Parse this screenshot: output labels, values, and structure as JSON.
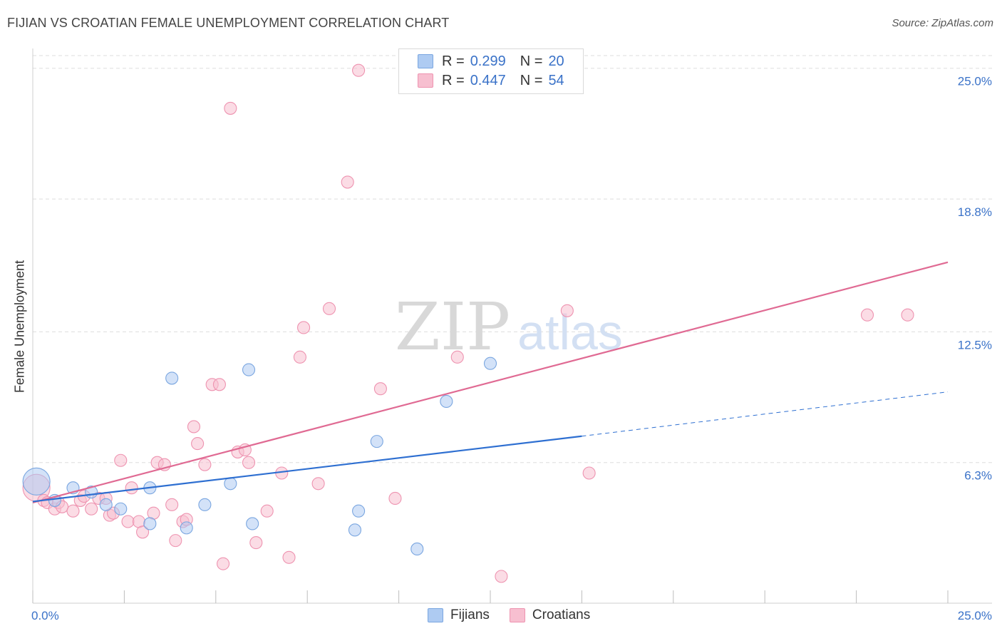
{
  "title": "FIJIAN VS CROATIAN FEMALE UNEMPLOYMENT CORRELATION CHART",
  "source": "Source: ZipAtlas.com",
  "watermark": {
    "zip": "ZIP",
    "atlas": "atlas"
  },
  "legend": {
    "series": [
      {
        "name": "Fijians",
        "r_label": "R = ",
        "r": "0.299",
        "n_label": "N = ",
        "n": "20"
      },
      {
        "name": "Croatians",
        "r_label": "R = ",
        "r": "0.447",
        "n_label": "N = ",
        "n": "54"
      }
    ]
  },
  "colors": {
    "fijians_fill": "#aecbf2",
    "fijians_stroke": "#7aa6e0",
    "fijians_line": "#2e6fd1",
    "croatians_fill": "#f7bfd0",
    "croatians_stroke": "#ee93b0",
    "croatians_line": "#e06a93",
    "tick_label": "#3a72c8"
  },
  "chart_data": {
    "type": "scatter",
    "title": "FIJIAN VS CROATIAN FEMALE UNEMPLOYMENT CORRELATION CHART",
    "xlabel": "",
    "ylabel": "Female Unemployment",
    "xlim": [
      0,
      25
    ],
    "ylim": [
      0,
      25.6
    ],
    "x_tick_labels": [
      {
        "value": 0,
        "label": "0.0%"
      },
      {
        "value": 25,
        "label": "25.0%"
      }
    ],
    "y_ticks": [
      {
        "value": 6.3,
        "label": "6.3%"
      },
      {
        "value": 12.5,
        "label": "12.5%"
      },
      {
        "value": 18.8,
        "label": "18.8%"
      },
      {
        "value": 25.0,
        "label": "25.0%"
      }
    ],
    "series": [
      {
        "name": "Fijians",
        "r": 0.299,
        "n": 20,
        "trend": {
          "x0": 0,
          "y0": 4.45,
          "x1": 15,
          "y1": 7.55,
          "dashed_to_x": 25,
          "dashed_to_y": 9.65
        },
        "points": [
          [
            0.1,
            5.4,
            "lg"
          ],
          [
            1.1,
            5.1
          ],
          [
            1.6,
            4.9
          ],
          [
            0.6,
            4.5
          ],
          [
            2.0,
            4.3
          ],
          [
            2.4,
            4.1
          ],
          [
            3.2,
            3.4
          ],
          [
            3.2,
            5.1
          ],
          [
            3.8,
            10.3
          ],
          [
            4.2,
            3.2
          ],
          [
            4.7,
            4.3
          ],
          [
            5.4,
            5.3
          ],
          [
            5.9,
            10.7
          ],
          [
            6.0,
            3.4
          ],
          [
            8.8,
            3.1
          ],
          [
            8.9,
            4.0
          ],
          [
            9.4,
            7.3
          ],
          [
            10.5,
            2.2
          ],
          [
            11.3,
            9.2
          ],
          [
            12.5,
            11.0
          ]
        ]
      },
      {
        "name": "Croatians",
        "r": 0.447,
        "n": 54,
        "trend": {
          "x0": 0,
          "y0": 4.4,
          "x1": 25,
          "y1": 15.8
        },
        "points": [
          [
            0.1,
            5.1,
            "lg"
          ],
          [
            0.3,
            4.5
          ],
          [
            0.4,
            4.4
          ],
          [
            0.6,
            4.1
          ],
          [
            0.7,
            4.4
          ],
          [
            0.8,
            4.2
          ],
          [
            1.1,
            4.0
          ],
          [
            1.3,
            4.5
          ],
          [
            1.4,
            4.7
          ],
          [
            1.6,
            4.1
          ],
          [
            1.8,
            4.6
          ],
          [
            2.0,
            4.6
          ],
          [
            2.1,
            3.8
          ],
          [
            2.2,
            3.9
          ],
          [
            2.4,
            6.4
          ],
          [
            2.6,
            3.5
          ],
          [
            2.7,
            5.1
          ],
          [
            2.9,
            3.5
          ],
          [
            3.0,
            3.0
          ],
          [
            3.3,
            3.9
          ],
          [
            3.4,
            6.3
          ],
          [
            3.6,
            6.2
          ],
          [
            3.8,
            4.3
          ],
          [
            3.9,
            2.6
          ],
          [
            4.1,
            3.5
          ],
          [
            4.2,
            3.6
          ],
          [
            4.4,
            8.0
          ],
          [
            4.5,
            7.2
          ],
          [
            4.7,
            6.2
          ],
          [
            4.9,
            10.0
          ],
          [
            5.1,
            10.0
          ],
          [
            5.2,
            1.5
          ],
          [
            5.4,
            23.1
          ],
          [
            5.6,
            6.8
          ],
          [
            5.8,
            6.9
          ],
          [
            5.9,
            6.3
          ],
          [
            6.1,
            2.5
          ],
          [
            6.4,
            4.0
          ],
          [
            6.8,
            5.8
          ],
          [
            7.0,
            1.8
          ],
          [
            7.3,
            11.3
          ],
          [
            7.4,
            12.7
          ],
          [
            7.8,
            5.3
          ],
          [
            8.1,
            13.6
          ],
          [
            8.6,
            19.6
          ],
          [
            8.9,
            24.9
          ],
          [
            9.5,
            9.8
          ],
          [
            9.9,
            4.6
          ],
          [
            11.6,
            11.3
          ],
          [
            12.8,
            0.9
          ],
          [
            14.6,
            13.5
          ],
          [
            15.2,
            5.8
          ],
          [
            22.8,
            13.3
          ],
          [
            23.9,
            13.3
          ]
        ]
      }
    ]
  }
}
